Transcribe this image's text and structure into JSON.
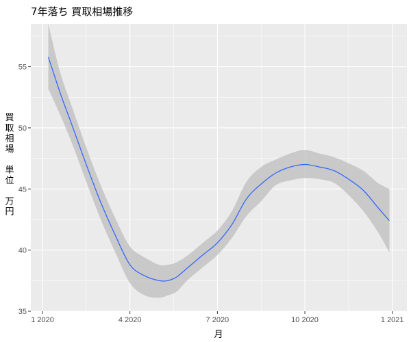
{
  "chart_data": {
    "type": "line",
    "title": "7年落ち 買取相場推移",
    "xlabel": "月",
    "ylabel": "買取相場　単位　万円",
    "x_ticks": [
      "1 2020",
      "4 2020",
      "7 2020",
      "10 2020",
      "1 2021"
    ],
    "x_tick_positions": [
      1,
      4,
      7,
      10,
      13
    ],
    "xlim": [
      0.6,
      13.5
    ],
    "y_ticks": [
      35,
      40,
      45,
      50,
      55
    ],
    "ylim": [
      35,
      58.5
    ],
    "grid": true,
    "legend": "none",
    "colors": {
      "line": "#3366ff",
      "ribbon": "#bdbdbd",
      "panel": "#ebebeb",
      "grid": "#ffffff"
    },
    "series": [
      {
        "x": [
          1.2,
          1.6,
          2,
          2.5,
          3,
          3.5,
          4,
          4.5,
          5,
          5.3,
          5.6,
          6,
          6.5,
          7,
          7.5,
          8,
          8.5,
          9,
          9.5,
          10,
          10.5,
          11,
          11.5,
          12,
          12.5,
          12.9
        ],
        "y": [
          55.8,
          52.9,
          50.3,
          47.0,
          43.9,
          41.2,
          38.8,
          37.9,
          37.5,
          37.5,
          37.8,
          38.6,
          39.6,
          40.6,
          42.1,
          44.2,
          45.4,
          46.3,
          46.8,
          47.0,
          46.8,
          46.5,
          45.8,
          44.9,
          43.5,
          42.4
        ],
        "lower": [
          53.2,
          51.1,
          48.8,
          45.6,
          42.5,
          39.8,
          37.3,
          36.3,
          36.1,
          36.3,
          36.6,
          37.6,
          38.6,
          39.6,
          41.0,
          42.8,
          44.0,
          45.3,
          45.7,
          45.9,
          45.8,
          45.5,
          44.5,
          43.2,
          41.5,
          39.8
        ],
        "upper": [
          58.5,
          54.6,
          51.8,
          48.4,
          45.3,
          42.6,
          40.3,
          39.4,
          38.8,
          38.8,
          39.0,
          39.6,
          40.6,
          41.6,
          43.2,
          45.6,
          46.8,
          47.4,
          47.9,
          48.2,
          47.9,
          47.6,
          47.1,
          46.5,
          45.5,
          45.0
        ]
      }
    ]
  }
}
